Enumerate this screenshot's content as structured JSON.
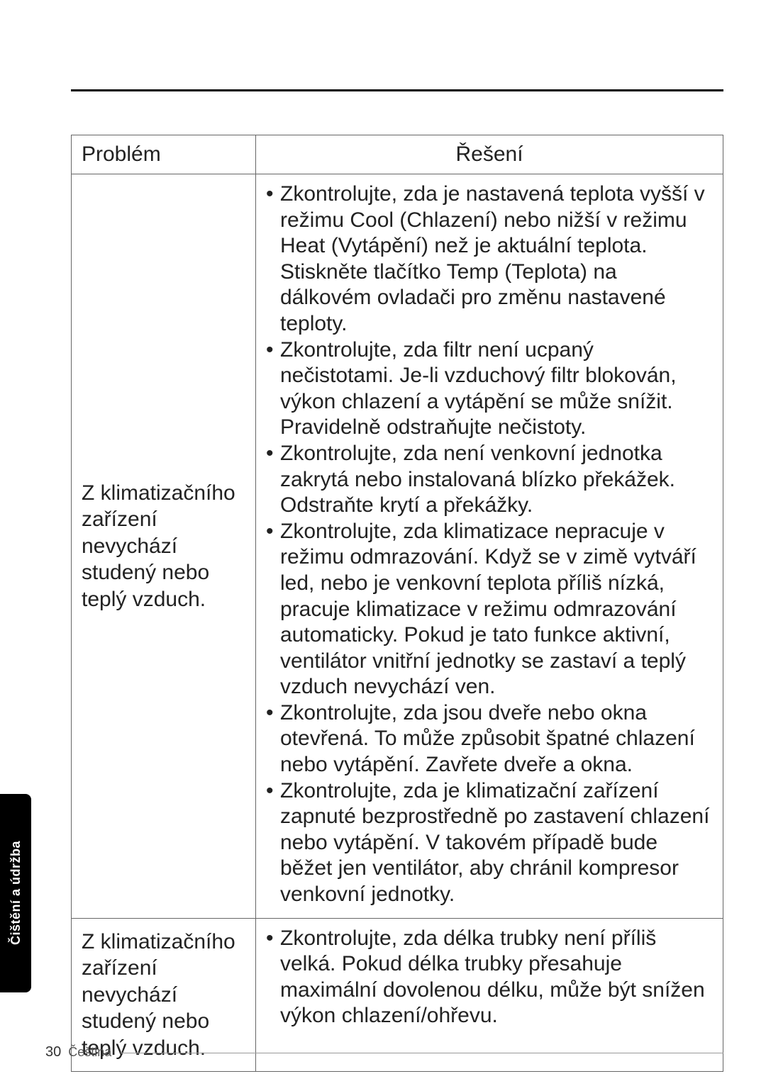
{
  "table": {
    "header": {
      "problem": "Problém",
      "solution": "Řešení"
    },
    "rows": [
      {
        "problem": "Z klimatizačního zařízení nevychází studený nebo teplý vzduch.",
        "bullets": [
          "Zkontrolujte, zda je nastavená teplota vyšší v režimu Cool (Chlazení) nebo nižší v režimu Heat (Vytápění) než je aktuální teplota. Stiskněte tlačítko Temp (Teplota) na dálkovém ovladači pro změnu nastavené teploty.",
          "Zkontrolujte, zda filtr není ucpaný nečistotami. Je-li vzduchový filtr blokován, výkon chlazení a vytápění se může snížit. Pravidelně odstraňujte nečistoty.",
          "Zkontrolujte, zda není venkovní jednotka zakrytá nebo instalovaná blízko překážek. Odstraňte krytí a překážky.",
          "Zkontrolujte, zda klimatizace nepracuje v režimu odmrazování. Když se v zimě vytváří led, nebo je venkovní teplota příliš nízká, pracuje klimatizace v režimu odmrazování automaticky. Pokud je tato funkce aktivní, ventilátor vnitřní jednotky se zastaví a teplý vzduch nevychází ven.",
          "Zkontrolujte, zda jsou dveře nebo okna otevřená. To může způsobit špatné chlazení nebo vytápění. Zavřete dveře a okna.",
          "Zkontrolujte, zda je klimatizační zařízení zapnuté bezprostředně po zastavení chlazení nebo vytápění. V takovém případě bude běžet jen ventilátor, aby chránil kompresor venkovní jednotky."
        ]
      },
      {
        "problem": "Z klimatizačního zařízení nevychází studený nebo teplý vzduch.",
        "bullets": [
          "Zkontrolujte, zda délka trubky není příliš velká. Pokud délka trubky přesahuje maximální dovolenou délku, může být snížen výkon chlazení/ohřevu."
        ]
      }
    ]
  },
  "sideTab": "Čištění a údržba",
  "footer": {
    "page": "30",
    "lang": "Čeština"
  }
}
